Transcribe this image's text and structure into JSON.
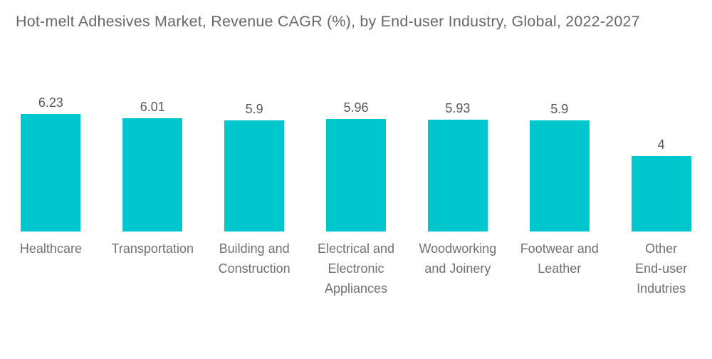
{
  "chart_data": {
    "type": "bar",
    "title": "Hot-melt Adhesives Market, Revenue CAGR (%), by End-user Industry, Global, 2022-2027",
    "categories": [
      "Healthcare",
      "Transportation",
      "Building and\nConstruction",
      "Electrical and\nElectronic\nAppliances",
      "Woodworking\nand Joinery",
      "Footwear and\nLeather",
      "Other\nEnd-user\nIndutries"
    ],
    "values": [
      6.23,
      6.01,
      5.9,
      5.96,
      5.93,
      5.9,
      4
    ],
    "display_values": [
      "6.23",
      "6.01",
      "5.9",
      "5.96",
      "5.93",
      "5.9",
      "4"
    ],
    "xlabel": "",
    "ylabel": "",
    "ylim": [
      0,
      7
    ],
    "grid": false,
    "legend": false,
    "axes_visible": false,
    "data_labels_position": "above-bar",
    "colors": {
      "bar": "#00C6CE",
      "title": "#66686B",
      "value_label": "#58595B",
      "category_label": "#6E7072",
      "background": "#FFFFFF"
    }
  }
}
